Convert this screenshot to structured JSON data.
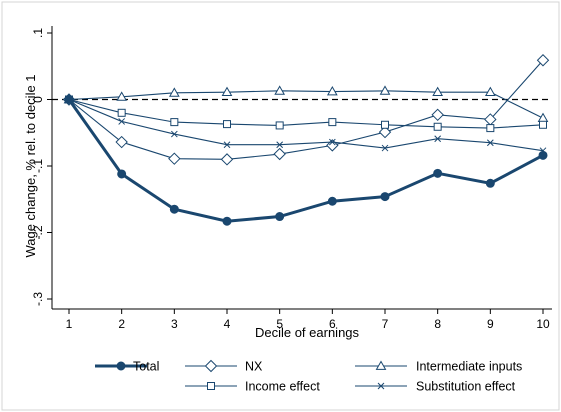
{
  "chart_data": {
    "type": "line",
    "title": "",
    "xlabel": "Decile of earnings",
    "ylabel": "Wage change, % rel. to decile 1",
    "x": [
      1,
      2,
      3,
      4,
      5,
      6,
      7,
      8,
      9,
      10
    ],
    "x_ticks": [
      "1",
      "2",
      "3",
      "4",
      "5",
      "6",
      "7",
      "8",
      "9",
      "10"
    ],
    "y_ticks": [
      ".1",
      "0",
      "-.1",
      "-.2",
      "-.3"
    ],
    "y_tick_values": [
      0.1,
      0,
      -0.1,
      -0.2,
      -0.3
    ],
    "ylim": [
      -0.31,
      0.11
    ],
    "xlim": [
      1,
      10
    ],
    "grid": false,
    "reference_line": 0,
    "legend_position": "bottom",
    "series": [
      {
        "name": "Total",
        "marker": "circle",
        "values": [
          0,
          -0.112,
          -0.165,
          -0.183,
          -0.176,
          -0.153,
          -0.146,
          -0.111,
          -0.126,
          -0.084
        ]
      },
      {
        "name": "NX",
        "marker": "diamond",
        "values": [
          0,
          -0.064,
          -0.089,
          -0.09,
          -0.082,
          -0.069,
          -0.049,
          -0.023,
          -0.03,
          0.059
        ]
      },
      {
        "name": "Intermediate inputs",
        "marker": "triangle",
        "values": [
          0,
          0.004,
          0.01,
          0.011,
          0.013,
          0.012,
          0.013,
          0.011,
          0.011,
          -0.028
        ]
      },
      {
        "name": "Income effect",
        "marker": "square",
        "values": [
          0,
          -0.02,
          -0.034,
          -0.037,
          -0.039,
          -0.034,
          -0.038,
          -0.041,
          -0.043,
          -0.038
        ]
      },
      {
        "name": "Substitution effect",
        "marker": "x",
        "values": [
          0,
          -0.033,
          -0.052,
          -0.068,
          -0.068,
          -0.064,
          -0.073,
          -0.059,
          -0.065,
          -0.077
        ]
      }
    ],
    "colors": {
      "line": "#1a476f",
      "zero_line": "#000000",
      "frame": "#d4d4d4"
    }
  }
}
